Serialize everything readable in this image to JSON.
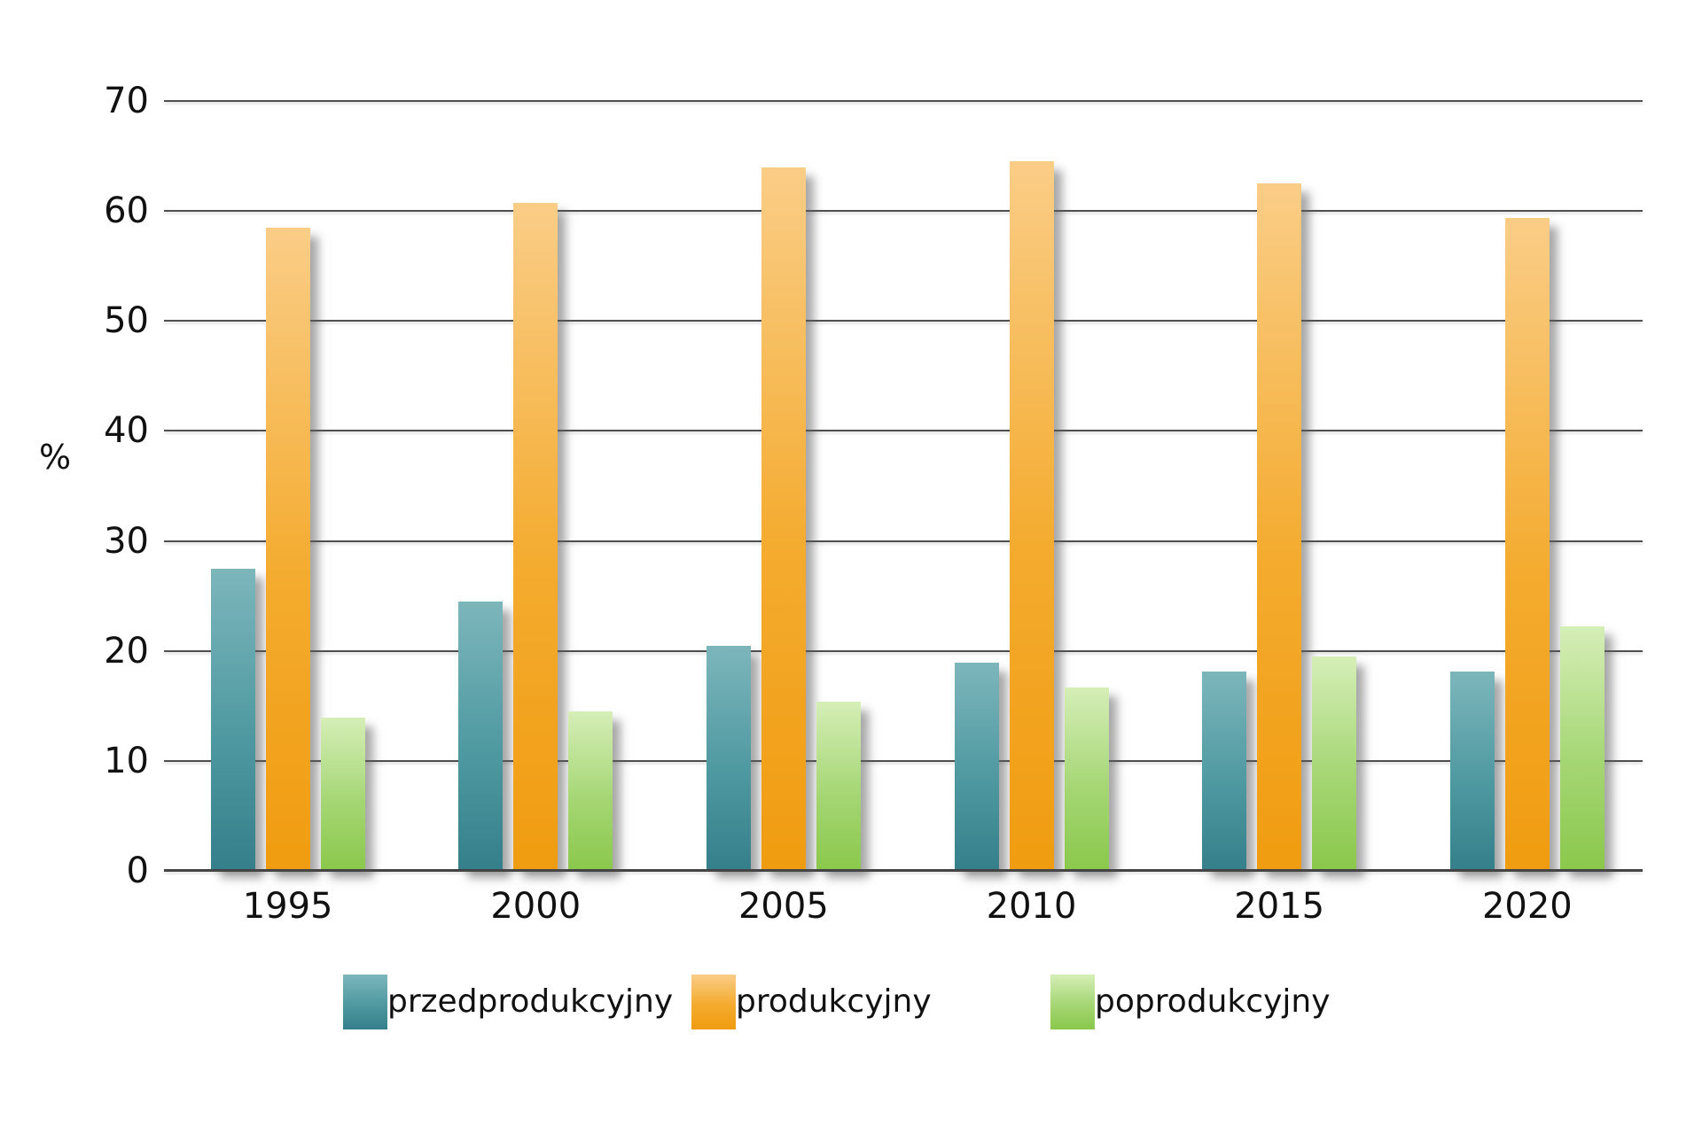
{
  "chart_data": {
    "type": "bar",
    "title": "",
    "ylabel": "%",
    "xlabel": "",
    "ylim": [
      0,
      70
    ],
    "yticks": [
      0,
      10,
      20,
      30,
      40,
      50,
      60,
      70
    ],
    "grid": true,
    "legend_position": "bottom",
    "categories": [
      "1995",
      "2000",
      "2005",
      "2010",
      "2015",
      "2020"
    ],
    "series": [
      {
        "name": "przedprodukcyjny",
        "color_top": "#7cb6bb",
        "color_mid": "#4f99a1",
        "color_bottom": "#357f8b",
        "values": [
          27.5,
          24.5,
          20.5,
          18.9,
          18.1,
          18.1
        ]
      },
      {
        "name": "produkcyjny",
        "color_top": "#facd87",
        "color_mid": "#f4ab2e",
        "color_bottom": "#f09c10",
        "values": [
          58.5,
          60.7,
          64.0,
          64.5,
          62.5,
          59.4
        ]
      },
      {
        "name": "poprodukcyjny",
        "color_top": "#d5eeb7",
        "color_mid": "#a5d674",
        "color_bottom": "#8ac84b",
        "values": [
          13.9,
          14.5,
          15.4,
          16.7,
          19.5,
          22.2
        ]
      }
    ]
  }
}
